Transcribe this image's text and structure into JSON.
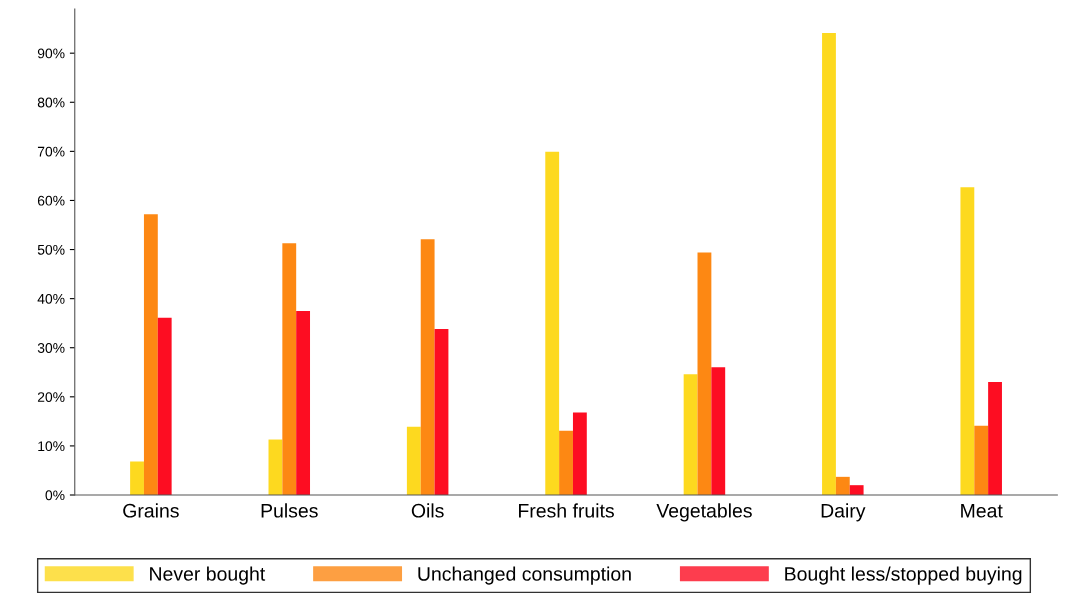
{
  "chart_data": {
    "type": "bar",
    "categories": [
      "Grains",
      "Pulses",
      "Oils",
      "Fresh fruits",
      "Vegetables",
      "Dairy",
      "Meat"
    ],
    "series": [
      {
        "name": "Never bought",
        "color": "#fdd91f",
        "values": [
          6.8,
          11.3,
          13.9,
          69.9,
          24.6,
          94.1,
          62.7
        ]
      },
      {
        "name": "Unchanged consumption",
        "color": "#fd8813",
        "values": [
          57.2,
          51.3,
          52.1,
          13.1,
          49.4,
          3.7,
          14.1
        ]
      },
      {
        "name": "Bought less/stopped buying",
        "color": "#fd0d22",
        "values": [
          36.1,
          37.5,
          33.8,
          16.8,
          26.0,
          2.0,
          23.0
        ]
      }
    ],
    "ylim": [
      0,
      99
    ],
    "yticks": [
      {
        "value": 0,
        "label": "0%"
      },
      {
        "value": 10,
        "label": "10%"
      },
      {
        "value": 20,
        "label": "20%"
      },
      {
        "value": 30,
        "label": "30%"
      },
      {
        "value": 40,
        "label": "40%"
      },
      {
        "value": 50,
        "label": "50%"
      },
      {
        "value": 60,
        "label": "60%"
      },
      {
        "value": 70,
        "label": "70%"
      },
      {
        "value": 80,
        "label": "80%"
      },
      {
        "value": 90,
        "label": "90%"
      }
    ],
    "grid": false,
    "legend": "bottom"
  }
}
